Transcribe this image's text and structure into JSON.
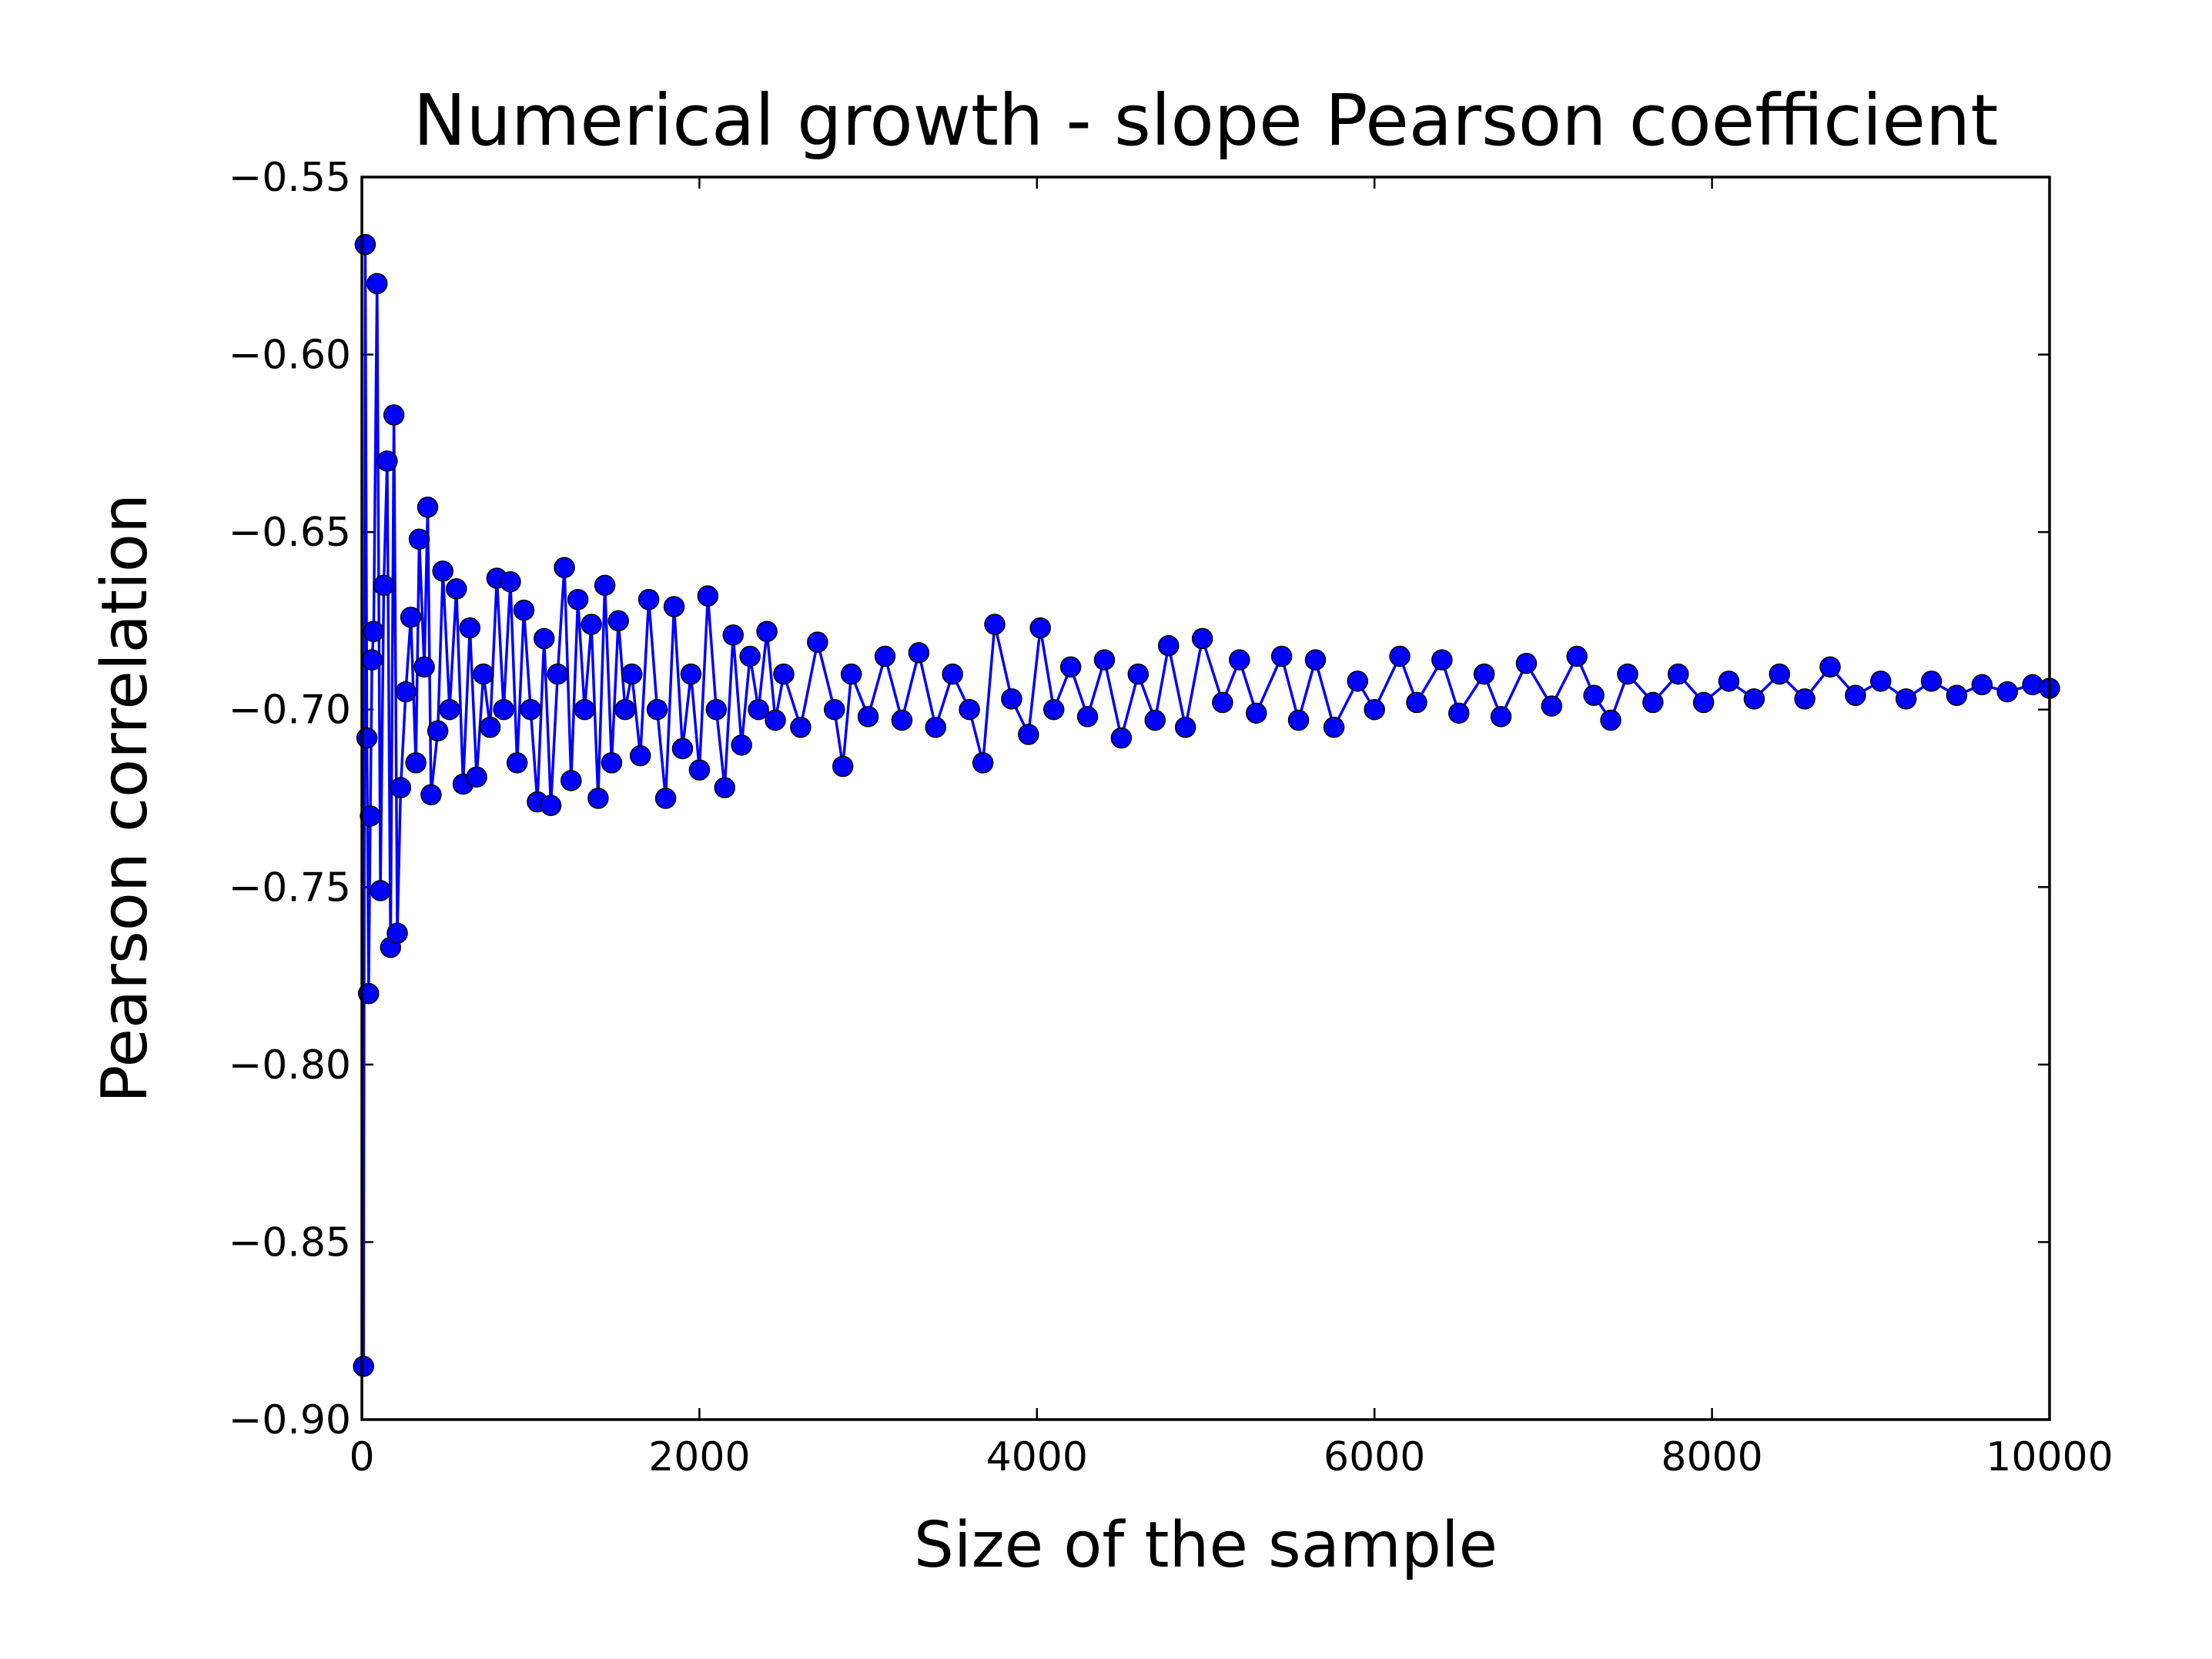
{
  "chart_data": {
    "type": "line",
    "title": "Numerical growth - slope Pearson coefficient",
    "xlabel": "Size of the sample",
    "ylabel": "Pearson correlation",
    "xlim": [
      0,
      10000
    ],
    "xticks": [
      0,
      2000,
      4000,
      6000,
      8000,
      10000
    ],
    "ylim": [
      -0.9,
      -0.55
    ],
    "yticks": [
      {
        "value": -0.9,
        "label": "−0.90"
      },
      {
        "value": -0.85,
        "label": "−0.85"
      },
      {
        "value": -0.8,
        "label": "−0.80"
      },
      {
        "value": -0.75,
        "label": "−0.75"
      },
      {
        "value": -0.7,
        "label": "−0.70"
      },
      {
        "value": -0.65,
        "label": "−0.65"
      },
      {
        "value": -0.6,
        "label": "−0.60"
      },
      {
        "value": -0.55,
        "label": "−0.55"
      }
    ],
    "grid": false,
    "color": "#0000ff",
    "x": [
      10,
      20,
      30,
      40,
      50,
      60,
      70,
      90,
      110,
      130,
      150,
      170,
      190,
      210,
      230,
      260,
      290,
      320,
      340,
      370,
      390,
      410,
      450,
      480,
      520,
      560,
      600,
      640,
      680,
      720,
      760,
      800,
      840,
      880,
      920,
      960,
      1000,
      1040,
      1080,
      1120,
      1160,
      1200,
      1240,
      1280,
      1320,
      1360,
      1400,
      1440,
      1480,
      1520,
      1560,
      1600,
      1650,
      1700,
      1750,
      1800,
      1850,
      1900,
      1950,
      2000,
      2050,
      2100,
      2150,
      2200,
      2250,
      2300,
      2350,
      2400,
      2450,
      2500,
      2600,
      2700,
      2800,
      2850,
      2900,
      3000,
      3100,
      3200,
      3300,
      3400,
      3500,
      3600,
      3680,
      3750,
      3850,
      3950,
      4020,
      4100,
      4200,
      4300,
      4400,
      4500,
      4600,
      4700,
      4780,
      4880,
      4980,
      5100,
      5200,
      5300,
      5450,
      5550,
      5650,
      5760,
      5900,
      6000,
      6150,
      6250,
      6400,
      6500,
      6650,
      6750,
      6900,
      7050,
      7200,
      7300,
      7400,
      7500,
      7650,
      7800,
      7950,
      8100,
      8250,
      8400,
      8550,
      8700,
      8850,
      9000,
      9150,
      9300,
      9450,
      9600,
      9750,
      9900,
      10000
    ],
    "values": [
      -0.885,
      -0.569,
      -0.708,
      -0.78,
      -0.73,
      -0.686,
      -0.678,
      -0.58,
      -0.751,
      -0.665,
      -0.63,
      -0.767,
      -0.617,
      -0.763,
      -0.722,
      -0.695,
      -0.674,
      -0.715,
      -0.652,
      -0.688,
      -0.643,
      -0.724,
      -0.706,
      -0.661,
      -0.7,
      -0.666,
      -0.721,
      -0.677,
      -0.719,
      -0.69,
      -0.705,
      -0.663,
      -0.7,
      -0.664,
      -0.715,
      -0.672,
      -0.7,
      -0.726,
      -0.68,
      -0.727,
      -0.69,
      -0.66,
      -0.72,
      -0.669,
      -0.7,
      -0.676,
      -0.725,
      -0.665,
      -0.715,
      -0.675,
      -0.7,
      -0.69,
      -0.713,
      -0.669,
      -0.7,
      -0.725,
      -0.671,
      -0.711,
      -0.69,
      -0.717,
      -0.668,
      -0.7,
      -0.722,
      -0.679,
      -0.71,
      -0.685,
      -0.7,
      -0.678,
      -0.703,
      -0.69,
      -0.705,
      -0.681,
      -0.7,
      -0.716,
      -0.69,
      -0.702,
      -0.685,
      -0.703,
      -0.684,
      -0.705,
      -0.69,
      -0.7,
      -0.715,
      -0.676,
      -0.697,
      -0.707,
      -0.677,
      -0.7,
      -0.688,
      -0.702,
      -0.686,
      -0.708,
      -0.69,
      -0.703,
      -0.682,
      -0.705,
      -0.68,
      -0.698,
      -0.686,
      -0.701,
      -0.685,
      -0.703,
      -0.686,
      -0.705,
      -0.692,
      -0.7,
      -0.685,
      -0.698,
      -0.686,
      -0.701,
      -0.69,
      -0.702,
      -0.687,
      -0.699,
      -0.685,
      -0.696,
      -0.703,
      -0.69,
      -0.698,
      -0.69,
      -0.698,
      -0.692,
      -0.697,
      -0.69,
      -0.697,
      -0.688,
      -0.696,
      -0.692,
      -0.697,
      -0.692,
      -0.696,
      -0.693,
      -0.695,
      -0.693,
      -0.694
    ]
  }
}
